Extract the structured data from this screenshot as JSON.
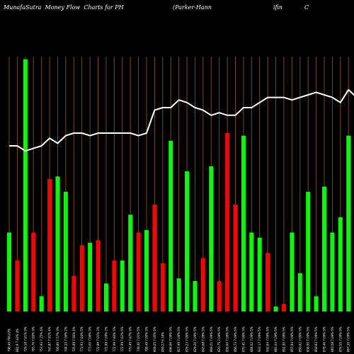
{
  "title": {
    "left": "MunafaSutra  Money Flow  Charts for PH",
    "right_parts": [
      "(Parker-Hann",
      "ifin",
      "C"
    ]
  },
  "colors": {
    "background": "#000000",
    "up": "#00ff00",
    "down": "#ff0000",
    "grid": "#7a4a10",
    "line": "#ffffff"
  },
  "chart_data": {
    "type": "bar",
    "grid": true,
    "ylim": [
      0,
      1
    ],
    "categories": [
      "796.49 796.07%",
      "881.9 7.62% 4%",
      "729.18 7.61% 9%",
      "783.76 7.65% 9%",
      "757.93 7.75% 4%",
      "743.87 7.91% 4%",
      "706.80 7.57% 9%",
      "744.20 7.56% 2%",
      "725.89 7.56% 4%",
      "772.93 7.64% 5%",
      "773.00 7.06% 5%",
      "772.89 7.01% 2%",
      "772.89 7.09% 2%",
      "772.99 7.60% 5%",
      "772.99 7.62% 5%",
      "770.49 7.67% 9%",
      "738.40 7.01% 5%",
      "798.49 7.00% 5%",
      "808.05 7.00% 5%",
      "859.27 6.18%",
      "646.66 7.09% 5%",
      "827.90 7.09% 5%",
      "876.23 7.09% 5%",
      "829.20 7.09% 5%",
      "843.68 7.09% 5%",
      "868.01 7.09% 5%",
      "820.75 7.09% 5%",
      "836.60 7.09% 5%",
      "856.73 7.09% 5%",
      "870.41 7.09% 5%",
      "884.02 7.09% 5%",
      "933.17 7.09% 5%",
      "932.64 7.09% 5%",
      "881.04 7.09% 5%",
      "852.90 7.09% 5%",
      "857.94 7.09% 5%",
      "850.62 7.09% 5%",
      "838.90 7.09% 5%",
      "858.83 7.09% 5%",
      "878.46 7.09% 5%",
      "883.58 7.09% 5%",
      "876.55 7.09% 5%",
      "867.30 7.09% 5%",
      "853.65 7.09% 5%"
    ],
    "series": [
      {
        "direction": [
          "up",
          "down",
          "up",
          "down",
          "up",
          "down",
          "up",
          "up",
          "down",
          "down",
          "up",
          "down",
          "up",
          "down",
          "up",
          "up",
          "down",
          "up",
          "down",
          "down",
          "up",
          "up",
          "up",
          "up",
          "down",
          "up",
          "down",
          "down",
          "down",
          "up",
          "up",
          "up",
          "down",
          "up",
          "down",
          "up",
          "up",
          "up",
          "up",
          "up",
          "up",
          "up",
          "up",
          "down"
        ],
        "values": [
          0.31,
          0.2,
          0.99,
          0.31,
          0.06,
          0.52,
          0.53,
          0.47,
          0.14,
          0.26,
          0.27,
          0.28,
          0.11,
          0.2,
          0.2,
          0.38,
          0.31,
          0.32,
          0.42,
          0.19,
          0.67,
          0.13,
          0.55,
          0.12,
          0.21,
          0.57,
          0.12,
          0.7,
          0.42,
          0.69,
          0.31,
          0.29,
          0.23,
          0.02,
          0.03,
          0.31,
          0.15,
          0.47,
          0.06,
          0.49,
          0.31,
          0.37,
          0.69,
          0.5
        ]
      },
      {
        "kind": "line",
        "values": [
          0.65,
          0.65,
          0.63,
          0.64,
          0.65,
          0.68,
          0.66,
          0.69,
          0.7,
          0.7,
          0.69,
          0.7,
          0.7,
          0.7,
          0.7,
          0.7,
          0.69,
          0.7,
          0.79,
          0.8,
          0.8,
          0.83,
          0.82,
          0.8,
          0.79,
          0.77,
          0.78,
          0.77,
          0.77,
          0.8,
          0.8,
          0.82,
          0.84,
          0.84,
          0.84,
          0.83,
          0.84,
          0.85,
          0.86,
          0.85,
          0.84,
          0.82,
          0.87,
          0.84
        ]
      }
    ]
  }
}
